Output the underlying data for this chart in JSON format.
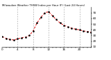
{
  "title": "Milwaukee Weather THSW Index per Hour (F) (Last 24 Hours)",
  "background_color": "#ffffff",
  "line_color": "#dd0000",
  "marker_color": "#000000",
  "grid_color": "#888888",
  "hours": [
    0,
    1,
    2,
    3,
    4,
    5,
    6,
    7,
    8,
    9,
    10,
    11,
    12,
    13,
    14,
    15,
    16,
    17,
    18,
    19,
    20,
    21,
    22,
    23
  ],
  "values": [
    28,
    25,
    23,
    22,
    24,
    26,
    27,
    30,
    38,
    52,
    62,
    70,
    72,
    65,
    58,
    52,
    48,
    45,
    43,
    41,
    40,
    38,
    37,
    36
  ],
  "ylim": [
    10,
    80
  ],
  "yticks": [
    10,
    20,
    30,
    40,
    50,
    60,
    70
  ],
  "ytick_labels": [
    "10",
    "20",
    "30",
    "40",
    "50",
    "60",
    "70"
  ],
  "xtick_hours": [
    0,
    4,
    8,
    12,
    16,
    20
  ],
  "xtick_labels": [
    "0",
    "4",
    "8",
    "12",
    "16",
    "20"
  ],
  "grid_xticks": [
    4,
    8,
    12,
    16,
    20
  ],
  "figsize": [
    1.6,
    0.87
  ],
  "dpi": 100
}
